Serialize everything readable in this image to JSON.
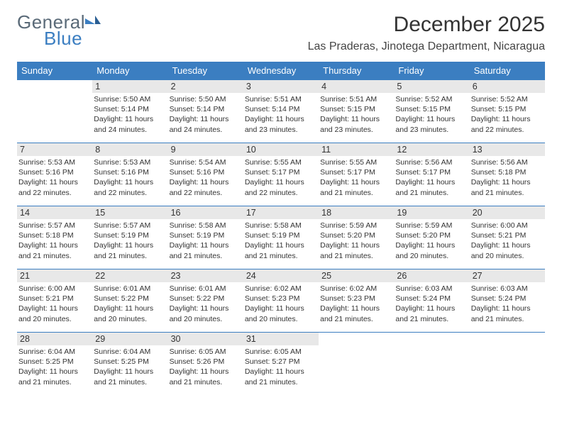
{
  "logo": {
    "word1": "General",
    "word2": "Blue"
  },
  "title": "December 2025",
  "location": "Las Praderas, Jinotega Department, Nicaragua",
  "day_headers": [
    "Sunday",
    "Monday",
    "Tuesday",
    "Wednesday",
    "Thursday",
    "Friday",
    "Saturday"
  ],
  "colors": {
    "header_bg": "#3b7ec1",
    "header_fg": "#ffffff",
    "border": "#3b7ec1",
    "daynum_bg": "#e8e8e8",
    "logo_gray": "#5a6a78",
    "logo_blue": "#3b7ec1"
  },
  "weeks": [
    [
      {
        "n": "",
        "sr": "",
        "ss": "",
        "dl": ""
      },
      {
        "n": "1",
        "sr": "Sunrise: 5:50 AM",
        "ss": "Sunset: 5:14 PM",
        "dl": "Daylight: 11 hours and 24 minutes."
      },
      {
        "n": "2",
        "sr": "Sunrise: 5:50 AM",
        "ss": "Sunset: 5:14 PM",
        "dl": "Daylight: 11 hours and 24 minutes."
      },
      {
        "n": "3",
        "sr": "Sunrise: 5:51 AM",
        "ss": "Sunset: 5:14 PM",
        "dl": "Daylight: 11 hours and 23 minutes."
      },
      {
        "n": "4",
        "sr": "Sunrise: 5:51 AM",
        "ss": "Sunset: 5:15 PM",
        "dl": "Daylight: 11 hours and 23 minutes."
      },
      {
        "n": "5",
        "sr": "Sunrise: 5:52 AM",
        "ss": "Sunset: 5:15 PM",
        "dl": "Daylight: 11 hours and 23 minutes."
      },
      {
        "n": "6",
        "sr": "Sunrise: 5:52 AM",
        "ss": "Sunset: 5:15 PM",
        "dl": "Daylight: 11 hours and 22 minutes."
      }
    ],
    [
      {
        "n": "7",
        "sr": "Sunrise: 5:53 AM",
        "ss": "Sunset: 5:16 PM",
        "dl": "Daylight: 11 hours and 22 minutes."
      },
      {
        "n": "8",
        "sr": "Sunrise: 5:53 AM",
        "ss": "Sunset: 5:16 PM",
        "dl": "Daylight: 11 hours and 22 minutes."
      },
      {
        "n": "9",
        "sr": "Sunrise: 5:54 AM",
        "ss": "Sunset: 5:16 PM",
        "dl": "Daylight: 11 hours and 22 minutes."
      },
      {
        "n": "10",
        "sr": "Sunrise: 5:55 AM",
        "ss": "Sunset: 5:17 PM",
        "dl": "Daylight: 11 hours and 22 minutes."
      },
      {
        "n": "11",
        "sr": "Sunrise: 5:55 AM",
        "ss": "Sunset: 5:17 PM",
        "dl": "Daylight: 11 hours and 21 minutes."
      },
      {
        "n": "12",
        "sr": "Sunrise: 5:56 AM",
        "ss": "Sunset: 5:17 PM",
        "dl": "Daylight: 11 hours and 21 minutes."
      },
      {
        "n": "13",
        "sr": "Sunrise: 5:56 AM",
        "ss": "Sunset: 5:18 PM",
        "dl": "Daylight: 11 hours and 21 minutes."
      }
    ],
    [
      {
        "n": "14",
        "sr": "Sunrise: 5:57 AM",
        "ss": "Sunset: 5:18 PM",
        "dl": "Daylight: 11 hours and 21 minutes."
      },
      {
        "n": "15",
        "sr": "Sunrise: 5:57 AM",
        "ss": "Sunset: 5:19 PM",
        "dl": "Daylight: 11 hours and 21 minutes."
      },
      {
        "n": "16",
        "sr": "Sunrise: 5:58 AM",
        "ss": "Sunset: 5:19 PM",
        "dl": "Daylight: 11 hours and 21 minutes."
      },
      {
        "n": "17",
        "sr": "Sunrise: 5:58 AM",
        "ss": "Sunset: 5:19 PM",
        "dl": "Daylight: 11 hours and 21 minutes."
      },
      {
        "n": "18",
        "sr": "Sunrise: 5:59 AM",
        "ss": "Sunset: 5:20 PM",
        "dl": "Daylight: 11 hours and 21 minutes."
      },
      {
        "n": "19",
        "sr": "Sunrise: 5:59 AM",
        "ss": "Sunset: 5:20 PM",
        "dl": "Daylight: 11 hours and 20 minutes."
      },
      {
        "n": "20",
        "sr": "Sunrise: 6:00 AM",
        "ss": "Sunset: 5:21 PM",
        "dl": "Daylight: 11 hours and 20 minutes."
      }
    ],
    [
      {
        "n": "21",
        "sr": "Sunrise: 6:00 AM",
        "ss": "Sunset: 5:21 PM",
        "dl": "Daylight: 11 hours and 20 minutes."
      },
      {
        "n": "22",
        "sr": "Sunrise: 6:01 AM",
        "ss": "Sunset: 5:22 PM",
        "dl": "Daylight: 11 hours and 20 minutes."
      },
      {
        "n": "23",
        "sr": "Sunrise: 6:01 AM",
        "ss": "Sunset: 5:22 PM",
        "dl": "Daylight: 11 hours and 20 minutes."
      },
      {
        "n": "24",
        "sr": "Sunrise: 6:02 AM",
        "ss": "Sunset: 5:23 PM",
        "dl": "Daylight: 11 hours and 20 minutes."
      },
      {
        "n": "25",
        "sr": "Sunrise: 6:02 AM",
        "ss": "Sunset: 5:23 PM",
        "dl": "Daylight: 11 hours and 21 minutes."
      },
      {
        "n": "26",
        "sr": "Sunrise: 6:03 AM",
        "ss": "Sunset: 5:24 PM",
        "dl": "Daylight: 11 hours and 21 minutes."
      },
      {
        "n": "27",
        "sr": "Sunrise: 6:03 AM",
        "ss": "Sunset: 5:24 PM",
        "dl": "Daylight: 11 hours and 21 minutes."
      }
    ],
    [
      {
        "n": "28",
        "sr": "Sunrise: 6:04 AM",
        "ss": "Sunset: 5:25 PM",
        "dl": "Daylight: 11 hours and 21 minutes."
      },
      {
        "n": "29",
        "sr": "Sunrise: 6:04 AM",
        "ss": "Sunset: 5:25 PM",
        "dl": "Daylight: 11 hours and 21 minutes."
      },
      {
        "n": "30",
        "sr": "Sunrise: 6:05 AM",
        "ss": "Sunset: 5:26 PM",
        "dl": "Daylight: 11 hours and 21 minutes."
      },
      {
        "n": "31",
        "sr": "Sunrise: 6:05 AM",
        "ss": "Sunset: 5:27 PM",
        "dl": "Daylight: 11 hours and 21 minutes."
      },
      {
        "n": "",
        "sr": "",
        "ss": "",
        "dl": ""
      },
      {
        "n": "",
        "sr": "",
        "ss": "",
        "dl": ""
      },
      {
        "n": "",
        "sr": "",
        "ss": "",
        "dl": ""
      }
    ]
  ]
}
